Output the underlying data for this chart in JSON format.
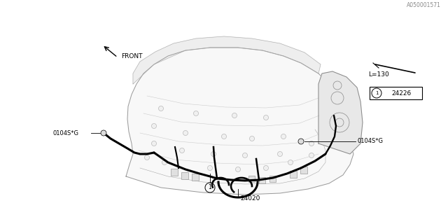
{
  "bg_color": "#ffffff",
  "line_color": "#000000",
  "thin_line": 0.4,
  "med_line": 0.7,
  "thick_line": 2.2,
  "wiring_color": "#000000",
  "label_24020": "24020",
  "label_24226": "24226",
  "label_0104SG_left": "0104S*G",
  "label_0104SG_right": "0104S*G",
  "label_front": "FRONT",
  "label_L130": "L=130",
  "label_part_num": "A050001571",
  "font_size_labels": 6.5,
  "font_size_part": 5.5,
  "manifold_color": "#ffffff",
  "manifold_edge": "#888888"
}
